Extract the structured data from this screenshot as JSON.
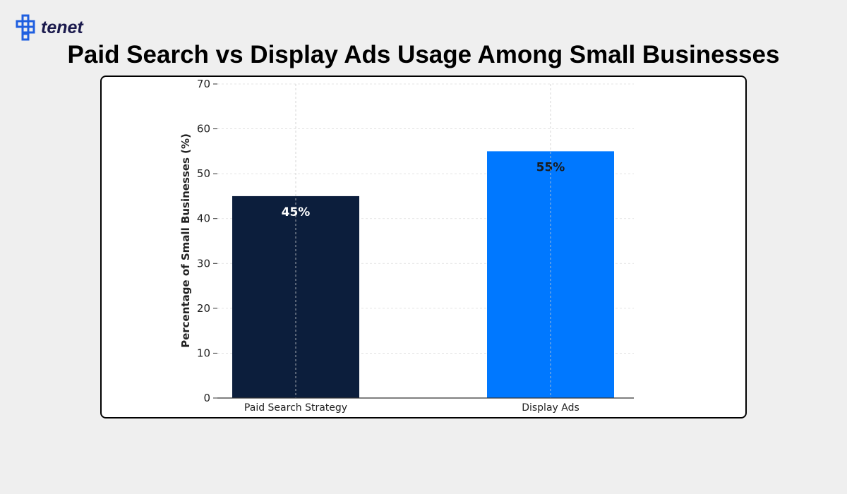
{
  "brand": {
    "name": "tenet",
    "color": "#1f5fe0"
  },
  "chart_data": {
    "type": "bar",
    "title": "Paid Search vs Display Ads Usage Among Small Businesses",
    "xlabel": "",
    "ylabel": "Percentage of Small Businesses (%)",
    "categories": [
      "Paid Search Strategy",
      "Display Ads"
    ],
    "values": [
      45,
      55
    ],
    "data_labels": [
      "45%",
      "55%"
    ],
    "colors": [
      "#0c1e3c",
      "#0078ff"
    ],
    "label_colors": [
      "#ffffff",
      "#1a1a1a"
    ],
    "ylim": [
      0,
      70
    ],
    "yticks": [
      0,
      10,
      20,
      30,
      40,
      50,
      60,
      70
    ],
    "grid": true
  }
}
